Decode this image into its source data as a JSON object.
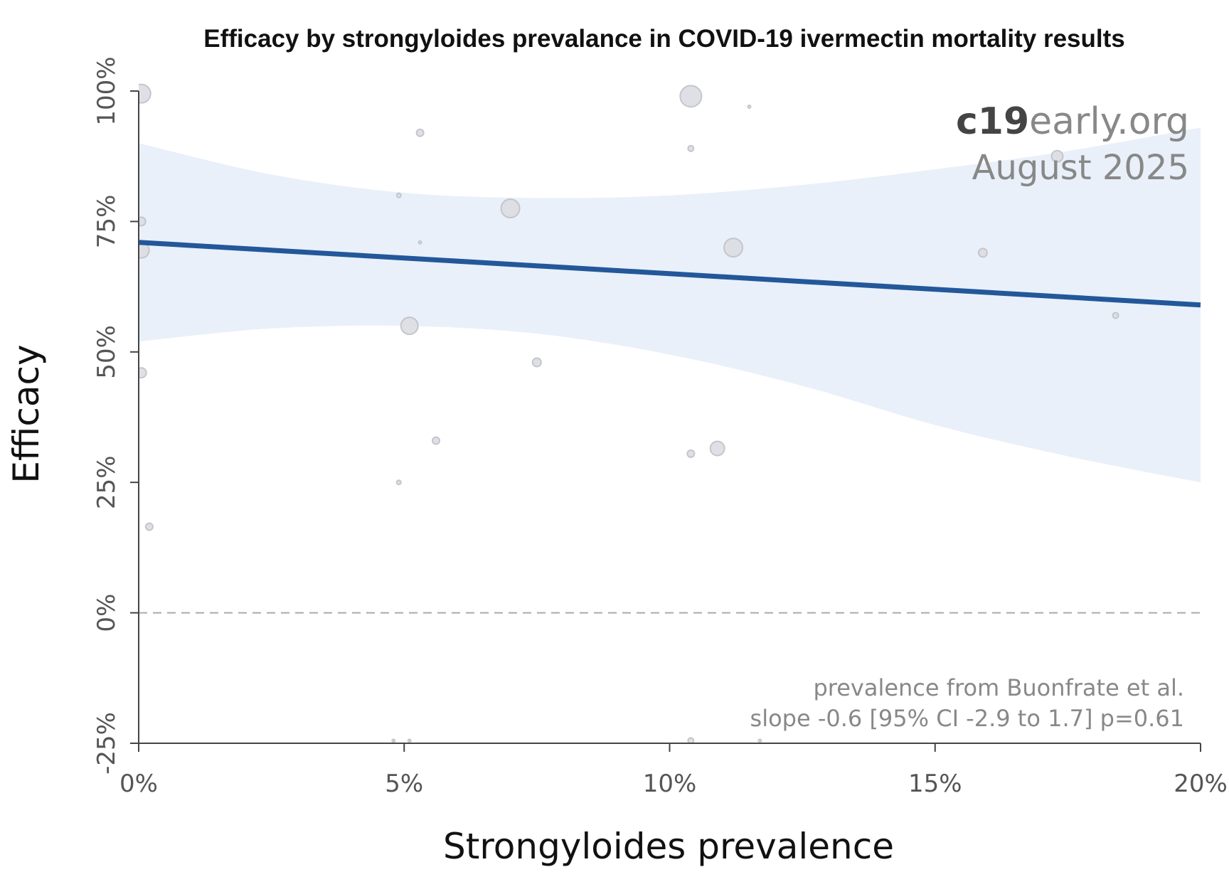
{
  "chart_data": {
    "type": "scatter",
    "title": "Efficacy by strongyloides prevalance in COVID-19 ivermectin mortality results",
    "xlabel": "Strongyloides prevalence",
    "ylabel": "Efficacy",
    "xlim": [
      0,
      20
    ],
    "ylim": [
      -25,
      100
    ],
    "x_ticks": [
      "0%",
      "5%",
      "10%",
      "15%",
      "20%"
    ],
    "x_tick_values": [
      0,
      5,
      10,
      15,
      20
    ],
    "y_ticks": [
      "-25%",
      "0%",
      "25%",
      "50%",
      "75%",
      "100%"
    ],
    "y_tick_values": [
      -25,
      0,
      25,
      50,
      75,
      100
    ],
    "reference_line": 0,
    "grid": false,
    "points": [
      {
        "x": 0.05,
        "y": 99.5,
        "weight": 13
      },
      {
        "x": 0.05,
        "y": 75,
        "weight": 6
      },
      {
        "x": 0.05,
        "y": 69.5,
        "weight": 11
      },
      {
        "x": 0.05,
        "y": 46,
        "weight": 7
      },
      {
        "x": 0.2,
        "y": 16.5,
        "weight": 5
      },
      {
        "x": 4.9,
        "y": 80,
        "weight": 3
      },
      {
        "x": 4.9,
        "y": 25,
        "weight": 3
      },
      {
        "x": 4.8,
        "y": -24.5,
        "weight": 2
      },
      {
        "x": 5.1,
        "y": 55,
        "weight": 12
      },
      {
        "x": 5.1,
        "y": -24.5,
        "weight": 2
      },
      {
        "x": 5.3,
        "y": 92,
        "weight": 5
      },
      {
        "x": 5.3,
        "y": 71,
        "weight": 2
      },
      {
        "x": 5.6,
        "y": 33,
        "weight": 5
      },
      {
        "x": 7.0,
        "y": 77.5,
        "weight": 13
      },
      {
        "x": 7.5,
        "y": 48,
        "weight": 6
      },
      {
        "x": 10.4,
        "y": 99,
        "weight": 15
      },
      {
        "x": 10.4,
        "y": 89,
        "weight": 4
      },
      {
        "x": 10.4,
        "y": 30.5,
        "weight": 5
      },
      {
        "x": 10.4,
        "y": -24.5,
        "weight": 4
      },
      {
        "x": 10.9,
        "y": 31.5,
        "weight": 10
      },
      {
        "x": 11.2,
        "y": 70,
        "weight": 13
      },
      {
        "x": 11.5,
        "y": 97,
        "weight": 2
      },
      {
        "x": 11.7,
        "y": -24.5,
        "weight": 2
      },
      {
        "x": 15.9,
        "y": 69,
        "weight": 6
      },
      {
        "x": 17.3,
        "y": 87.5,
        "weight": 8
      },
      {
        "x": 18.4,
        "y": 57,
        "weight": 4
      }
    ],
    "regression": {
      "x": [
        0,
        20
      ],
      "y": [
        71,
        59
      ]
    },
    "confidence_band": {
      "x": [
        0,
        2.5,
        5,
        7.5,
        10,
        12.5,
        15,
        17.5,
        20
      ],
      "upper": [
        90,
        84,
        80.5,
        79.5,
        80,
        82,
        85,
        88.5,
        93
      ],
      "lower": [
        52,
        54.5,
        55,
        53.5,
        49.5,
        43.5,
        36,
        30,
        25
      ]
    },
    "colors": {
      "regression": "#23579a",
      "band": "#e9f0f9",
      "points_fill": "#dcdde2",
      "points_stroke": "#c4c6cc",
      "axis": "#444444",
      "reference": "#aaaaaa"
    }
  },
  "watermark": {
    "brand_bold": "c19",
    "brand_light": "early",
    "brand_tld": ".org",
    "date": "August 2025"
  },
  "annotations": {
    "line1": "prevalence from Buonfrate et al.",
    "line2": "slope -0.6 [95% CI -2.9 to 1.7] p=0.61"
  }
}
